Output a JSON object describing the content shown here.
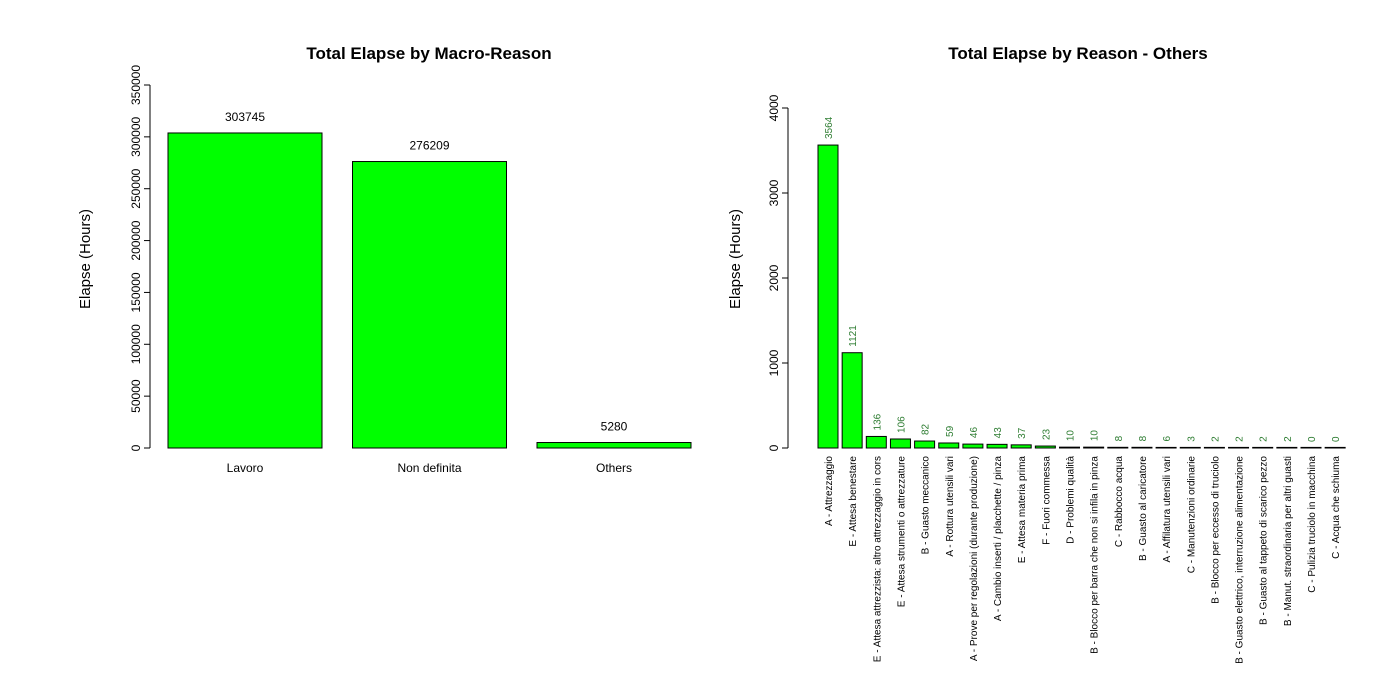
{
  "colors": {
    "bar_fill": "#00ff00",
    "bar_stroke": "#000000",
    "label_text_right": "#2e7d32",
    "axis": "#000000"
  },
  "chart_data": [
    {
      "type": "bar",
      "title": "Total Elapse by Macro-Reason",
      "xlabel": "",
      "ylabel": "Elapse (Hours)",
      "categories": [
        "Lavoro",
        "Non definita",
        "Others"
      ],
      "values": [
        303745,
        276209,
        5280
      ],
      "value_labels": [
        "303745",
        "276209",
        "5280"
      ],
      "ylim": [
        0,
        350000
      ],
      "yticks": [
        0,
        50000,
        100000,
        150000,
        200000,
        250000,
        300000,
        350000
      ],
      "ytick_labels": [
        "0",
        "50000",
        "100000",
        "150000",
        "200000",
        "250000",
        "300000",
        "350000"
      ],
      "grid": false,
      "legend": "none"
    },
    {
      "type": "bar",
      "title": "Total Elapse by Reason - Others",
      "xlabel": "",
      "ylabel": "Elapse (Hours)",
      "categories": [
        "A - Attrezzaggio",
        "E - Attesa benestare",
        "E - Attesa attrezzista: altro attrezzaggio in cors",
        "E - Attesa strumenti o attrezzature",
        "B - Guasto meccanico",
        "A - Rottura utensili vari",
        "A - Prove per regolazioni (durante produzione)",
        "A - Cambio inserti / placchette / pinza",
        "E - Attesa materia prima",
        "F - Fuori commessa",
        "D - Problemi qualità",
        "B - Blocco per barra che non si infila in pinza",
        "C - Rabbocco acqua",
        "B - Guasto al caricatore",
        "A - Affilatura utensili vari",
        "C - Manutenzioni ordinarie",
        "B - Blocco per eccesso di truciolo",
        "B - Guasto elettrico, interruzione alimentazione",
        "B - Guasto al tappeto di scarico pezzo",
        "B - Manut. straordinaria per altri guasti",
        "C - Pulizia truciolo in macchina",
        "C - Acqua che schiuma"
      ],
      "values": [
        3564,
        1121,
        136,
        106,
        82,
        59,
        46,
        43,
        37,
        23,
        10,
        10,
        8,
        8,
        6,
        3,
        2,
        2,
        2,
        2,
        0,
        0
      ],
      "value_labels": [
        "3564",
        "1121",
        "136",
        "106",
        "82",
        "59",
        "46",
        "43",
        "37",
        "23",
        "10",
        "10",
        "8",
        "8",
        "6",
        "3",
        "2",
        "2",
        "2",
        "2",
        "0",
        "0"
      ],
      "ylim": [
        0,
        4000
      ],
      "yticks": [
        0,
        1000,
        2000,
        3000,
        4000
      ],
      "ytick_labels": [
        "0",
        "1000",
        "2000",
        "3000",
        "4000"
      ],
      "grid": false,
      "legend": "none"
    }
  ]
}
